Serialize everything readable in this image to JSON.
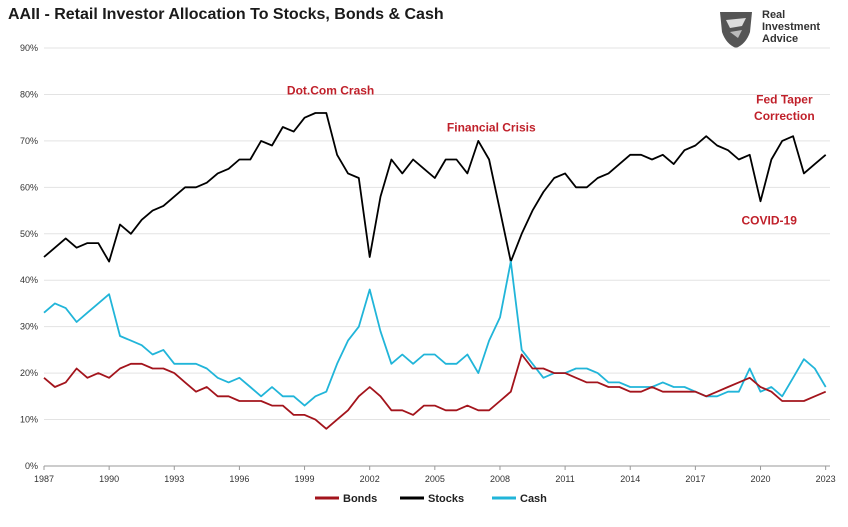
{
  "title": "AAII - Retail Investor Allocation To Stocks, Bonds & Cash",
  "logo": {
    "line1": "Real",
    "line2": "Investment",
    "line3": "Advice",
    "icon": "eagle-shield-icon"
  },
  "chart_data": {
    "type": "line",
    "ylim": [
      0,
      90
    ],
    "xlim": [
      1987,
      2023.2
    ],
    "yticks": [
      "0%",
      "10%",
      "20%",
      "30%",
      "40%",
      "50%",
      "60%",
      "70%",
      "80%",
      "90%"
    ],
    "xticks": [
      "1987",
      "1990",
      "1993",
      "1996",
      "1999",
      "2002",
      "2005",
      "2008",
      "2011",
      "2014",
      "2017",
      "2020",
      "2023"
    ],
    "grid": "horizontal",
    "legend_position": "bottom",
    "colors": {
      "Bonds": "#a3141c",
      "Stocks": "#000000",
      "Cash": "#21b5d9"
    },
    "series": [
      {
        "name": "Stocks",
        "x": [
          1987,
          1987.5,
          1988,
          1988.5,
          1989,
          1989.5,
          1990,
          1990.5,
          1991,
          1991.5,
          1992,
          1992.5,
          1993,
          1993.5,
          1994,
          1994.5,
          1995,
          1995.5,
          1996,
          1996.5,
          1997,
          1997.5,
          1998,
          1998.5,
          1999,
          1999.5,
          2000,
          2000.5,
          2001,
          2001.5,
          2002,
          2002.5,
          2003,
          2003.5,
          2004,
          2004.5,
          2005,
          2005.5,
          2006,
          2006.5,
          2007,
          2007.5,
          2008,
          2008.5,
          2009,
          2009.5,
          2010,
          2010.5,
          2011,
          2011.5,
          2012,
          2012.5,
          2013,
          2013.5,
          2014,
          2014.5,
          2015,
          2015.5,
          2016,
          2016.5,
          2017,
          2017.5,
          2018,
          2018.5,
          2019,
          2019.5,
          2020,
          2020.5,
          2021,
          2021.5,
          2022,
          2022.5,
          2023
        ],
        "values": [
          45,
          47,
          49,
          47,
          48,
          48,
          44,
          52,
          50,
          53,
          55,
          56,
          58,
          60,
          60,
          61,
          63,
          64,
          66,
          66,
          70,
          69,
          73,
          72,
          75,
          76,
          76,
          67,
          63,
          62,
          45,
          58,
          66,
          63,
          66,
          64,
          62,
          66,
          66,
          63,
          70,
          66,
          55,
          44,
          50,
          55,
          59,
          62,
          63,
          60,
          60,
          62,
          63,
          65,
          67,
          67,
          66,
          67,
          65,
          68,
          69,
          71,
          69,
          68,
          66,
          67,
          57,
          66,
          70,
          71,
          63,
          65,
          67
        ]
      },
      {
        "name": "Cash",
        "x": [
          1987,
          1987.5,
          1988,
          1988.5,
          1989,
          1989.5,
          1990,
          1990.5,
          1991,
          1991.5,
          1992,
          1992.5,
          1993,
          1993.5,
          1994,
          1994.5,
          1995,
          1995.5,
          1996,
          1996.5,
          1997,
          1997.5,
          1998,
          1998.5,
          1999,
          1999.5,
          2000,
          2000.5,
          2001,
          2001.5,
          2002,
          2002.5,
          2003,
          2003.5,
          2004,
          2004.5,
          2005,
          2005.5,
          2006,
          2006.5,
          2007,
          2007.5,
          2008,
          2008.5,
          2009,
          2009.5,
          2010,
          2010.5,
          2011,
          2011.5,
          2012,
          2012.5,
          2013,
          2013.5,
          2014,
          2014.5,
          2015,
          2015.5,
          2016,
          2016.5,
          2017,
          2017.5,
          2018,
          2018.5,
          2019,
          2019.5,
          2020,
          2020.5,
          2021,
          2021.5,
          2022,
          2022.5,
          2023
        ],
        "values": [
          33,
          35,
          34,
          31,
          33,
          35,
          37,
          28,
          27,
          26,
          24,
          25,
          22,
          22,
          22,
          21,
          19,
          18,
          19,
          17,
          15,
          17,
          15,
          15,
          13,
          15,
          16,
          22,
          27,
          30,
          38,
          29,
          22,
          24,
          22,
          24,
          24,
          22,
          22,
          24,
          20,
          27,
          32,
          44,
          25,
          22,
          19,
          20,
          20,
          21,
          21,
          20,
          18,
          18,
          17,
          17,
          17,
          18,
          17,
          17,
          16,
          15,
          15,
          16,
          16,
          21,
          16,
          17,
          15,
          19,
          23,
          21,
          17
        ]
      },
      {
        "name": "Bonds",
        "x": [
          1987,
          1987.5,
          1988,
          1988.5,
          1989,
          1989.5,
          1990,
          1990.5,
          1991,
          1991.5,
          1992,
          1992.5,
          1993,
          1993.5,
          1994,
          1994.5,
          1995,
          1995.5,
          1996,
          1996.5,
          1997,
          1997.5,
          1998,
          1998.5,
          1999,
          1999.5,
          2000,
          2000.5,
          2001,
          2001.5,
          2002,
          2002.5,
          2003,
          2003.5,
          2004,
          2004.5,
          2005,
          2005.5,
          2006,
          2006.5,
          2007,
          2007.5,
          2008,
          2008.5,
          2009,
          2009.5,
          2010,
          2010.5,
          2011,
          2011.5,
          2012,
          2012.5,
          2013,
          2013.5,
          2014,
          2014.5,
          2015,
          2015.5,
          2016,
          2016.5,
          2017,
          2017.5,
          2018,
          2018.5,
          2019,
          2019.5,
          2020,
          2020.5,
          2021,
          2021.5,
          2022,
          2022.5,
          2023
        ],
        "values": [
          19,
          17,
          18,
          21,
          19,
          20,
          19,
          21,
          22,
          22,
          21,
          21,
          20,
          18,
          16,
          17,
          15,
          15,
          14,
          14,
          14,
          13,
          13,
          11,
          11,
          10,
          8,
          10,
          12,
          15,
          17,
          15,
          12,
          12,
          11,
          13,
          13,
          12,
          12,
          13,
          12,
          12,
          14,
          16,
          24,
          21,
          21,
          20,
          20,
          19,
          18,
          18,
          17,
          17,
          16,
          16,
          17,
          16,
          16,
          16,
          16,
          15,
          16,
          17,
          18,
          19,
          17,
          16,
          14,
          14,
          14,
          15,
          16
        ]
      }
    ],
    "annotations": [
      {
        "text": "Dot.Com Crash",
        "x": 2000.2,
        "y": 80
      },
      {
        "text": "Financial Crisis",
        "x": 2007.6,
        "y": 72
      },
      {
        "text": "Fed Taper",
        "x": 2021.1,
        "y": 78
      },
      {
        "text": "Correction",
        "x": 2021.1,
        "y": 74.5
      },
      {
        "text": "COVID-19",
        "x": 2020.4,
        "y": 52
      }
    ]
  }
}
